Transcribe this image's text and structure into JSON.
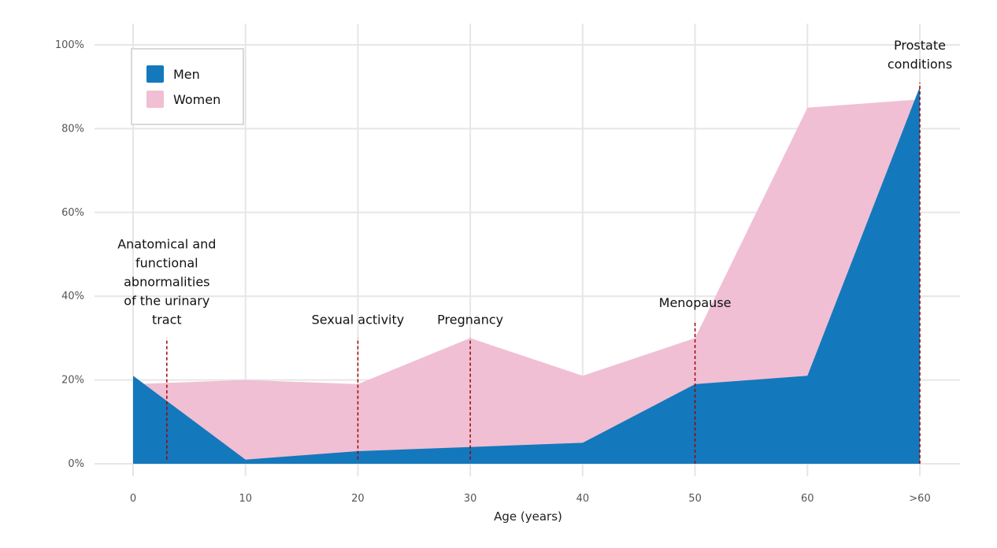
{
  "chart_data": {
    "type": "area",
    "title": "",
    "xlabel": "Age (years)",
    "ylabel": "",
    "categories": [
      "0",
      "10",
      "20",
      "30",
      "40",
      "50",
      "60",
      ">60"
    ],
    "x_tick_positions": [
      0,
      10,
      20,
      30,
      40,
      50,
      60,
      70
    ],
    "ylim": [
      0,
      100
    ],
    "y_ticks": [
      0,
      20,
      40,
      60,
      80,
      100
    ],
    "y_tick_labels": [
      "0%",
      "20%",
      "40%",
      "60%",
      "80%",
      "100%"
    ],
    "grid": true,
    "legend": {
      "placement": "top-left"
    },
    "series": [
      {
        "name": "Men",
        "color": "#1478bc",
        "points": [
          [
            0,
            21
          ],
          [
            10,
            1
          ],
          [
            20,
            3
          ],
          [
            30,
            4
          ],
          [
            40,
            5
          ],
          [
            50,
            19
          ],
          [
            60,
            21
          ],
          [
            70,
            90
          ]
        ]
      },
      {
        "name": "Women",
        "color": "#f0bfd3",
        "points": [
          [
            0,
            19
          ],
          [
            10,
            20
          ],
          [
            20,
            19
          ],
          [
            30,
            30
          ],
          [
            40,
            21
          ],
          [
            50,
            30
          ],
          [
            60,
            85
          ],
          [
            70,
            87
          ]
        ]
      }
    ],
    "annotations": [
      {
        "lines": [
          "Anatomical and",
          "functional",
          "abnormalities",
          "of the urinary",
          "tract"
        ],
        "x": 3,
        "y_from": 1,
        "y_to": 30,
        "label_x": 3
      },
      {
        "lines": [
          "Sexual activity"
        ],
        "x": 20,
        "y_from": 1,
        "y_to": 30,
        "label_x": 20
      },
      {
        "lines": [
          "Pregnancy"
        ],
        "x": 30,
        "y_from": 1,
        "y_to": 30,
        "label_x": 30
      },
      {
        "lines": [
          "Menopause"
        ],
        "x": 50,
        "y_from": 0,
        "y_to": 34,
        "label_x": 50
      },
      {
        "lines": [
          "Prostate",
          "conditions"
        ],
        "x": 70,
        "y_from": 0,
        "y_to": 91,
        "label_x": 70
      }
    ],
    "annotation_line_color": "#a00000"
  }
}
